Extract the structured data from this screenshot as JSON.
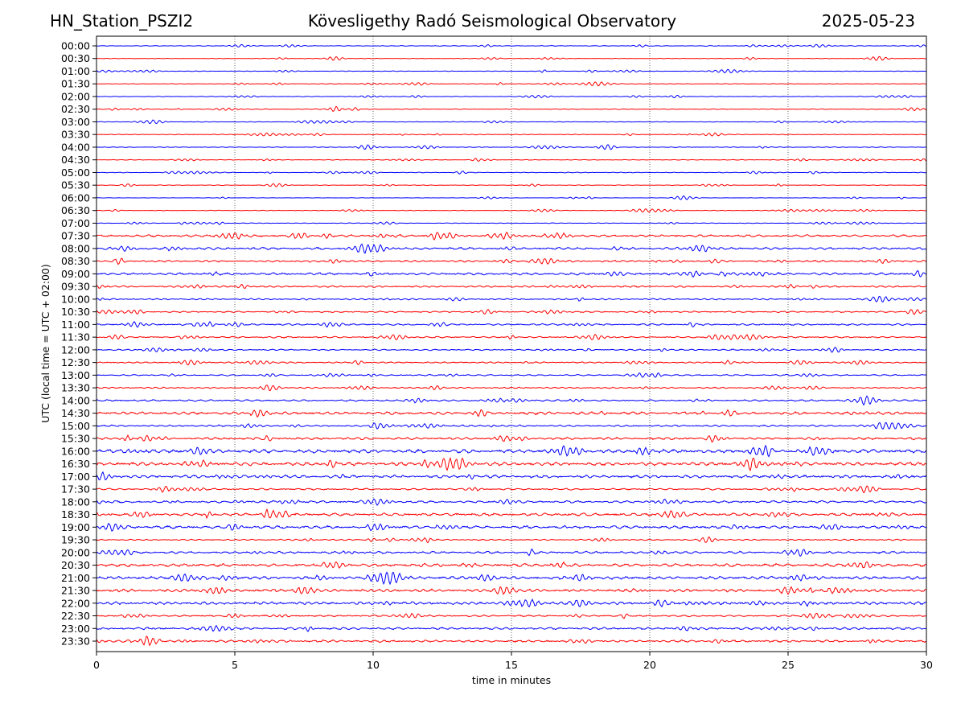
{
  "header": {
    "station": "HN_Station_PSZI2",
    "observatory": "Kövesligethy Radó Seismological Observatory",
    "date": "2025-05-23"
  },
  "chart_data": {
    "type": "line",
    "title": "Kövesligethy Radó Seismological Observatory",
    "xlabel": "time in minutes",
    "ylabel": "UTC (local time = UTC + 02:00)",
    "xlim": [
      0,
      30
    ],
    "xticks": [
      "0",
      "5",
      "10",
      "15",
      "20",
      "25",
      "30"
    ],
    "grid": "vertical dotted at each x tick",
    "colors": {
      "full_hour": "#0000ff",
      "half_hour": "#ff0000"
    },
    "rows": [
      "00:00",
      "00:30",
      "01:00",
      "01:30",
      "02:00",
      "02:30",
      "03:00",
      "03:30",
      "04:00",
      "04:30",
      "05:00",
      "05:30",
      "06:00",
      "06:30",
      "07:00",
      "07:30",
      "08:00",
      "08:30",
      "09:00",
      "09:30",
      "10:00",
      "10:30",
      "11:00",
      "11:30",
      "12:00",
      "12:30",
      "13:00",
      "13:30",
      "14:00",
      "14:30",
      "15:00",
      "15:30",
      "16:00",
      "16:30",
      "17:00",
      "17:30",
      "18:00",
      "18:30",
      "19:00",
      "19:30",
      "20:00",
      "20:30",
      "21:00",
      "21:30",
      "22:00",
      "22:30",
      "23:00",
      "23:30"
    ],
    "relative_amplitude": [
      0.6,
      0.4,
      0.5,
      0.5,
      0.5,
      0.6,
      0.5,
      0.6,
      0.6,
      0.5,
      0.6,
      0.5,
      0.3,
      0.5,
      0.5,
      2,
      2,
      1.6,
      2,
      1.5,
      1.3,
      1.3,
      1.5,
      1.4,
      1.2,
      1.2,
      1.2,
      1.2,
      1.5,
      2.4,
      1.5,
      2,
      3,
      3,
      2.5,
      1.5,
      2,
      2.5,
      2.5,
      1.2,
      2,
      2.6,
      2.5,
      2.5,
      2.5,
      1.5,
      2,
      2
    ]
  }
}
